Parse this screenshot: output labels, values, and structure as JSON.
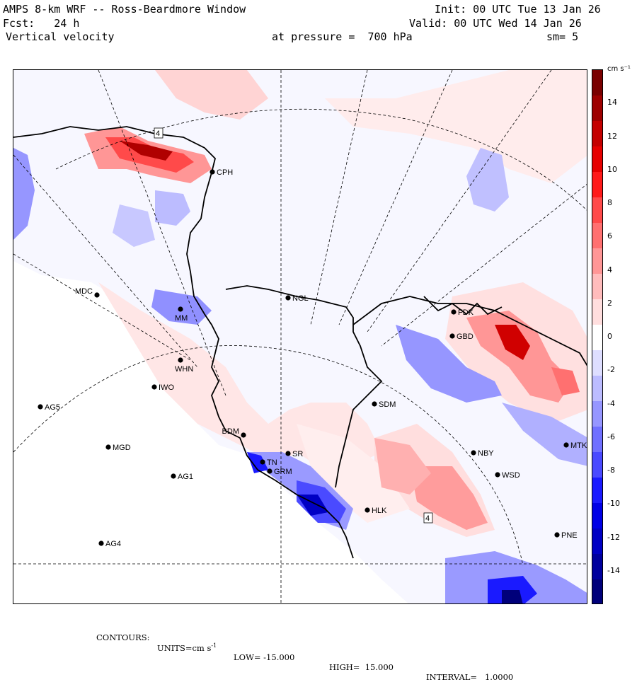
{
  "header": {
    "title": "AMPS 8-km WRF -- Ross-Beardmore Window",
    "init": "Init: 00 UTC Tue 13 Jan 26",
    "fcst": "Fcst:   24 h",
    "valid": "Valid: 00 UTC Wed 14 Jan 26",
    "field": "Vertical velocity",
    "pressure": "at pressure =  700 hPa",
    "smooth": "sm= 5"
  },
  "colorbar": {
    "unit": "cm s⁻¹",
    "labels": [
      "14",
      "12",
      "10",
      "8",
      "6",
      "4",
      "2",
      "0",
      "-2",
      "-4",
      "-6",
      "-8",
      "-10",
      "-12",
      "-14"
    ],
    "colors": [
      "#7a0000",
      "#9e0000",
      "#c40000",
      "#e60000",
      "#ff1a1a",
      "#ff4a4a",
      "#ff7070",
      "#ff9696",
      "#ffbcbc",
      "#ffdede",
      "#ffffff",
      "#dedeff",
      "#bcbcff",
      "#9696ff",
      "#7070ff",
      "#4a4aff",
      "#1a1aff",
      "#0000e6",
      "#0000c4",
      "#00009e",
      "#00007a"
    ]
  },
  "stations": [
    {
      "id": "CPH",
      "label": "CPH"
    },
    {
      "id": "NGL",
      "label": "NGL"
    },
    {
      "id": "MDC",
      "label": "MDC"
    },
    {
      "id": "MM",
      "label": "MM"
    },
    {
      "id": "WHN",
      "label": "WHN"
    },
    {
      "id": "IWO",
      "label": "IWO"
    },
    {
      "id": "AG5",
      "label": "AG5"
    },
    {
      "id": "FDK",
      "label": "FDK"
    },
    {
      "id": "GBD",
      "label": "GBD"
    },
    {
      "id": "SDM",
      "label": "SDM"
    },
    {
      "id": "BDM",
      "label": "BDM"
    },
    {
      "id": "MGD",
      "label": "MGD"
    },
    {
      "id": "SR",
      "label": "SR"
    },
    {
      "id": "TN",
      "label": "TN"
    },
    {
      "id": "GRM",
      "label": "GRM"
    },
    {
      "id": "AG1",
      "label": "AG1"
    },
    {
      "id": "NBY",
      "label": "NBY"
    },
    {
      "id": "MTK",
      "label": "MTK"
    },
    {
      "id": "WSD",
      "label": "WSD"
    },
    {
      "id": "HLK",
      "label": "HLK"
    },
    {
      "id": "PNE",
      "label": "PNE"
    },
    {
      "id": "AG4",
      "label": "AG4"
    }
  ],
  "contour_labels": [
    "4",
    "4"
  ],
  "footer": {
    "contours": "CONTOURS:",
    "units_label": "UNITS=cm s",
    "units_exp": "-1",
    "low": "LOW= -15.000",
    "high": "HIGH=  15.000",
    "interval": "INTERVAL=   1.0000"
  }
}
